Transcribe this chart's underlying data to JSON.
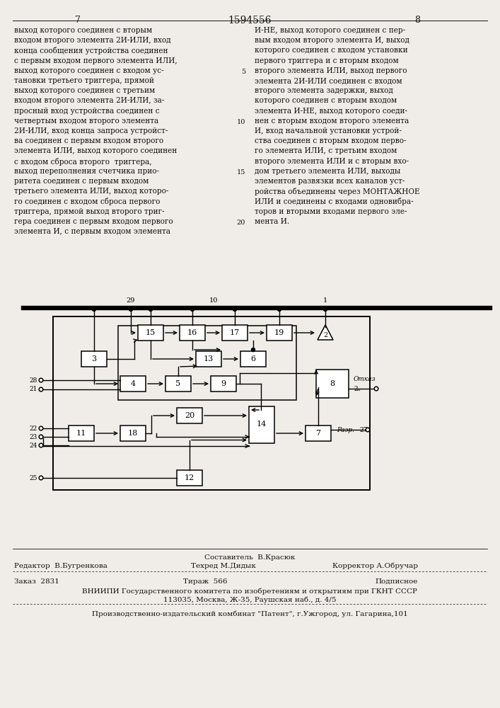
{
  "page_num_left": "7",
  "page_num_center": "1594556",
  "page_num_right": "8",
  "col_left_text": [
    "выход которого соединен с вторым",
    "входом второго элемента 2И-ИЛИ, вход",
    "конца сообщения устройства соединен",
    "с первым входом первого элемента ИЛИ,",
    "выход которого соединен с входом ус-",
    "тановки третьего триггера, прямой",
    "выход которого соединен с третьим",
    "входом второго элемента 2И-ИЛИ, за-",
    "просный вход устройства соединен с",
    "четвертым входом второго элемента",
    "2И-ИЛИ, вход конца запроса устройст-",
    "ва соединен с первым входом второго",
    "элемента ИЛИ, выход которого соединен",
    "с входом сброса второго  триггера,",
    "выход переполнения счетчика прио-",
    "ритета соединен с первым входом",
    "третьего элемента ИЛИ, выход которо-",
    "го соединен с входом сброса первого",
    "триггера, прямой выход второго триг-",
    "гера соединен с первым входом первого",
    "элемента И, с первым входом элемента"
  ],
  "col_right_text": [
    "И-НЕ, выход которого соединен с пер-",
    "вым входом второго элемента И, выход",
    "которого соединен с входом установки",
    "первого триггера и с вторым входом",
    "второго элемента ИЛИ, выход первого",
    "элемента 2И-ИЛИ соединен с входом",
    "второго элемента задержки, выход",
    "которого соединен с вторым входом",
    "элемента И-НЕ, выход которого соеди-",
    "нен с вторым входом второго элемента",
    "И, вход начальной установки устрой-",
    "ства соединен с вторым входом перво-",
    "го элемента ИЛИ, с третьим входом",
    "второго элемента ИЛИ и с вторым вхо-",
    "дом третьего элемента ИЛИ, выходы",
    "элементов развязки всех каналов уст-",
    "ройства объединены через МОНТАЖНОЕ",
    "ИЛИ и соединены с входами одновибра-",
    "торов и вторыми входами первого эле-",
    "мента И."
  ],
  "line_numbers": [
    [
      5,
      4
    ],
    [
      10,
      9
    ],
    [
      15,
      14
    ],
    [
      20,
      19
    ]
  ],
  "footer_composer_label": "Составитель  В.Красюк",
  "footer_editor": "Редактор  В.Бугренкова",
  "footer_techred": "Техред М.Дидык",
  "footer_corrector": "Корректор А.Обручар",
  "footer_order": "Заказ  2831",
  "footer_print": "Тираж  566",
  "footer_subscription": "Подписное",
  "footer_vniip1": "ВНИИПИ Государственного комитета по изобретениям и открытиям при ГКНТ СССР",
  "footer_vniip2": "113035, Москва, Ж-35, Раушская наб., д. 4/5",
  "footer_plant": "Производственно-издательский комбинат \"Патент\", г.Ужгород, ул. Гагарина,101",
  "bg_color": "#f0ede8",
  "text_color": "#111111"
}
